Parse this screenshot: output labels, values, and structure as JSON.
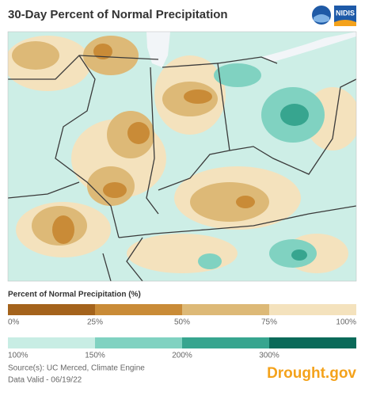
{
  "header": {
    "title": "30-Day Percent of Normal Precipitation",
    "logo_text": "NIDIS"
  },
  "legend": {
    "title": "Percent of Normal Precipitation (%)",
    "dry": {
      "colors": [
        "#a4631c",
        "#c98b37",
        "#ddb977",
        "#f4e2bd"
      ],
      "labels": [
        "0%",
        "25%",
        "50%",
        "75%",
        "100%"
      ]
    },
    "wet": {
      "colors": [
        "#c8ede4",
        "#80d2c1",
        "#37a58f",
        "#0a6a59"
      ],
      "labels": [
        "100%",
        "150%",
        "200%",
        "300%"
      ]
    }
  },
  "footer": {
    "source": "Source(s): UC Merced, Climate Engine",
    "valid": "Data Valid - 06/19/22",
    "brand": "Drought.gov"
  }
}
